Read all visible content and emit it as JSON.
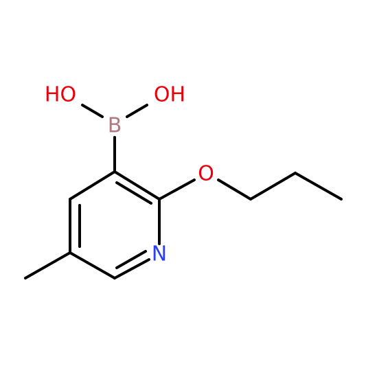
{
  "atoms": [
    {
      "label": "HO"
    },
    {
      "label": "OH"
    },
    {
      "label": "B"
    },
    {
      "label": "O"
    },
    {
      "label": "N"
    }
  ]
}
